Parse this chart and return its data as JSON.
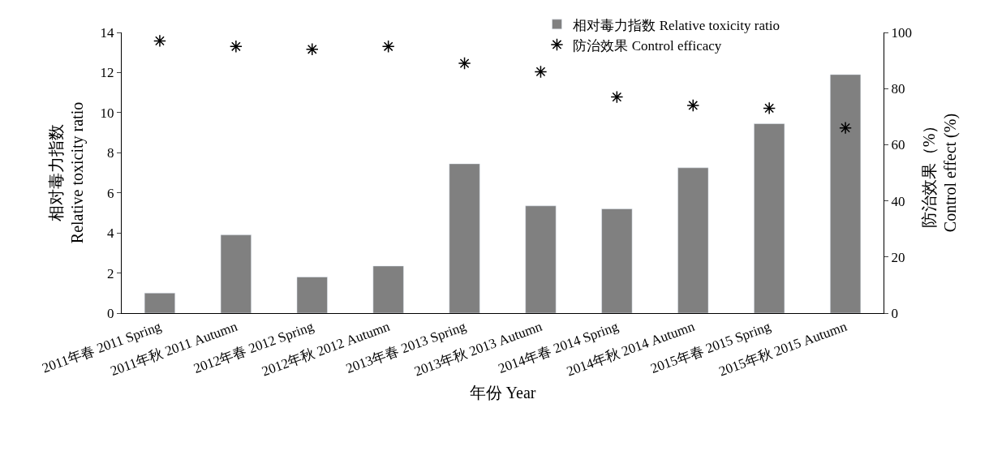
{
  "chart_data": {
    "type": "bar",
    "categories": [
      "2011年春 2011 Spring",
      "2011年秋 2011 Autumn",
      "2012年春 2012 Spring",
      "2012年秋 2012 Autumn",
      "2013年春 2013 Spring",
      "2013年秋 2013 Autumn",
      "2014年春 2014 Spring",
      "2014年秋 2014 Autumn",
      "2015年春 2015 Spring",
      "2015年秋 2015 Autumn"
    ],
    "series": [
      {
        "name": "相对毒力指数 Relative toxicity ratio",
        "color": "#808080",
        "values": [
          1.0,
          3.9,
          1.8,
          2.35,
          7.45,
          5.35,
          5.2,
          7.25,
          9.45,
          11.9
        ]
      },
      {
        "name": "防治效果 Control efficacy",
        "type": "scatter",
        "axis": "y2",
        "marker": "cross",
        "color": "#000000",
        "values": [
          97,
          95,
          94,
          95,
          89,
          86,
          77,
          74,
          73,
          66
        ]
      }
    ],
    "xlabel": "年份 Year",
    "ylabel": "相对毒力指数\nRelative toxicity ratio",
    "y2label": "防治效果（%）\nControl effect (%)",
    "ylim": [
      0,
      14
    ],
    "yticks": [
      0,
      2,
      4,
      6,
      8,
      10,
      12,
      14
    ],
    "y2lim": [
      0,
      100
    ],
    "y2ticks": [
      0,
      20,
      40,
      60,
      80,
      100
    ],
    "legend": "top"
  }
}
